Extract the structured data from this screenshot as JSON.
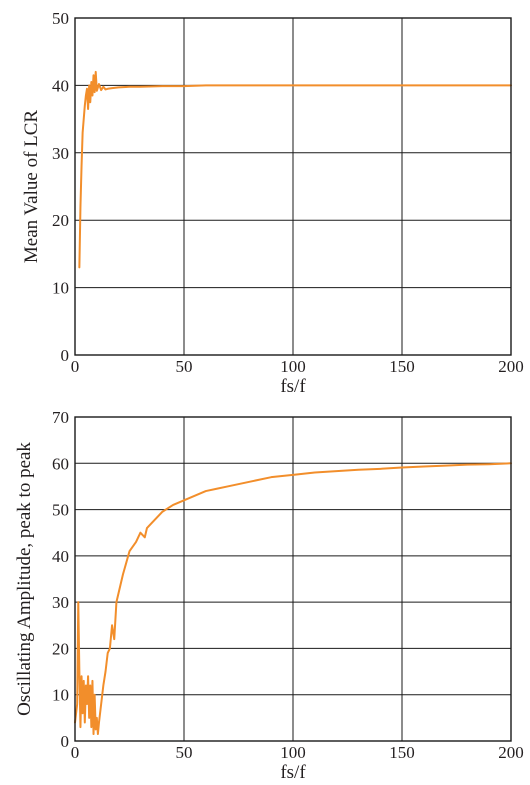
{
  "chart_data": [
    {
      "type": "line",
      "xlabel": "fs/f",
      "ylabel": "Mean Value of LCR",
      "xlim": [
        0,
        200
      ],
      "ylim": [
        0,
        50
      ],
      "x_ticks": [
        0,
        50,
        100,
        150,
        200
      ],
      "y_ticks": [
        0,
        10,
        20,
        30,
        40,
        50
      ],
      "grid": true,
      "series_color": "#f28e2b",
      "series": [
        {
          "x": [
            2,
            2.5,
            3,
            3.5,
            4,
            4.5,
            5,
            5.5,
            6,
            6.5,
            7,
            7.5,
            8,
            8.5,
            9,
            9.5,
            10,
            11,
            12,
            13,
            14,
            15,
            17,
            20,
            25,
            30,
            40,
            50,
            60,
            70,
            80,
            90,
            100,
            120,
            140,
            160,
            180,
            200
          ],
          "y": [
            13,
            22,
            28,
            33,
            35,
            37,
            38.5,
            39.5,
            36.5,
            40,
            37.5,
            40.5,
            38.5,
            41.5,
            39,
            42,
            39.2,
            40.2,
            39.3,
            39.8,
            39.4,
            39.5,
            39.6,
            39.7,
            39.8,
            39.8,
            39.9,
            39.9,
            40,
            40,
            40,
            40,
            40,
            40,
            40,
            40,
            40,
            40
          ]
        }
      ]
    },
    {
      "type": "line",
      "xlabel": "fs/f",
      "ylabel": "Oscillating Amplitude, peak to peak",
      "xlim": [
        0,
        200
      ],
      "ylim": [
        0,
        70
      ],
      "x_ticks": [
        0,
        50,
        100,
        150,
        200
      ],
      "y_ticks": [
        0,
        10,
        20,
        30,
        40,
        50,
        60,
        70
      ],
      "grid": true,
      "series_color": "#f28e2b",
      "series": [
        {
          "x": [
            0,
            1,
            1.5,
            2,
            2.5,
            3,
            3.5,
            4,
            4.5,
            5,
            5.5,
            6,
            6.5,
            7,
            7.5,
            8,
            8.5,
            9,
            9.5,
            10,
            10.5,
            11,
            12,
            13,
            14,
            15,
            16,
            17,
            18,
            19,
            20,
            22,
            25,
            28,
            30,
            32,
            33,
            35,
            40,
            45,
            50,
            55,
            60,
            65,
            70,
            80,
            90,
            100,
            110,
            120,
            130,
            140,
            150,
            160,
            170,
            180,
            190,
            200
          ],
          "y": [
            4,
            8,
            30,
            15,
            3,
            14,
            6,
            13,
            4,
            12,
            8,
            14,
            5,
            12,
            3,
            13,
            1.5,
            10,
            2.5,
            5,
            1.5,
            4,
            8,
            12,
            15,
            19,
            20,
            25,
            22,
            30,
            32,
            36,
            41,
            43,
            45,
            44,
            46,
            47,
            49.5,
            51,
            52,
            53,
            54,
            54.5,
            55,
            56,
            57,
            57.5,
            58,
            58.3,
            58.6,
            58.8,
            59.1,
            59.3,
            59.5,
            59.7,
            59.8,
            60
          ]
        }
      ]
    }
  ]
}
